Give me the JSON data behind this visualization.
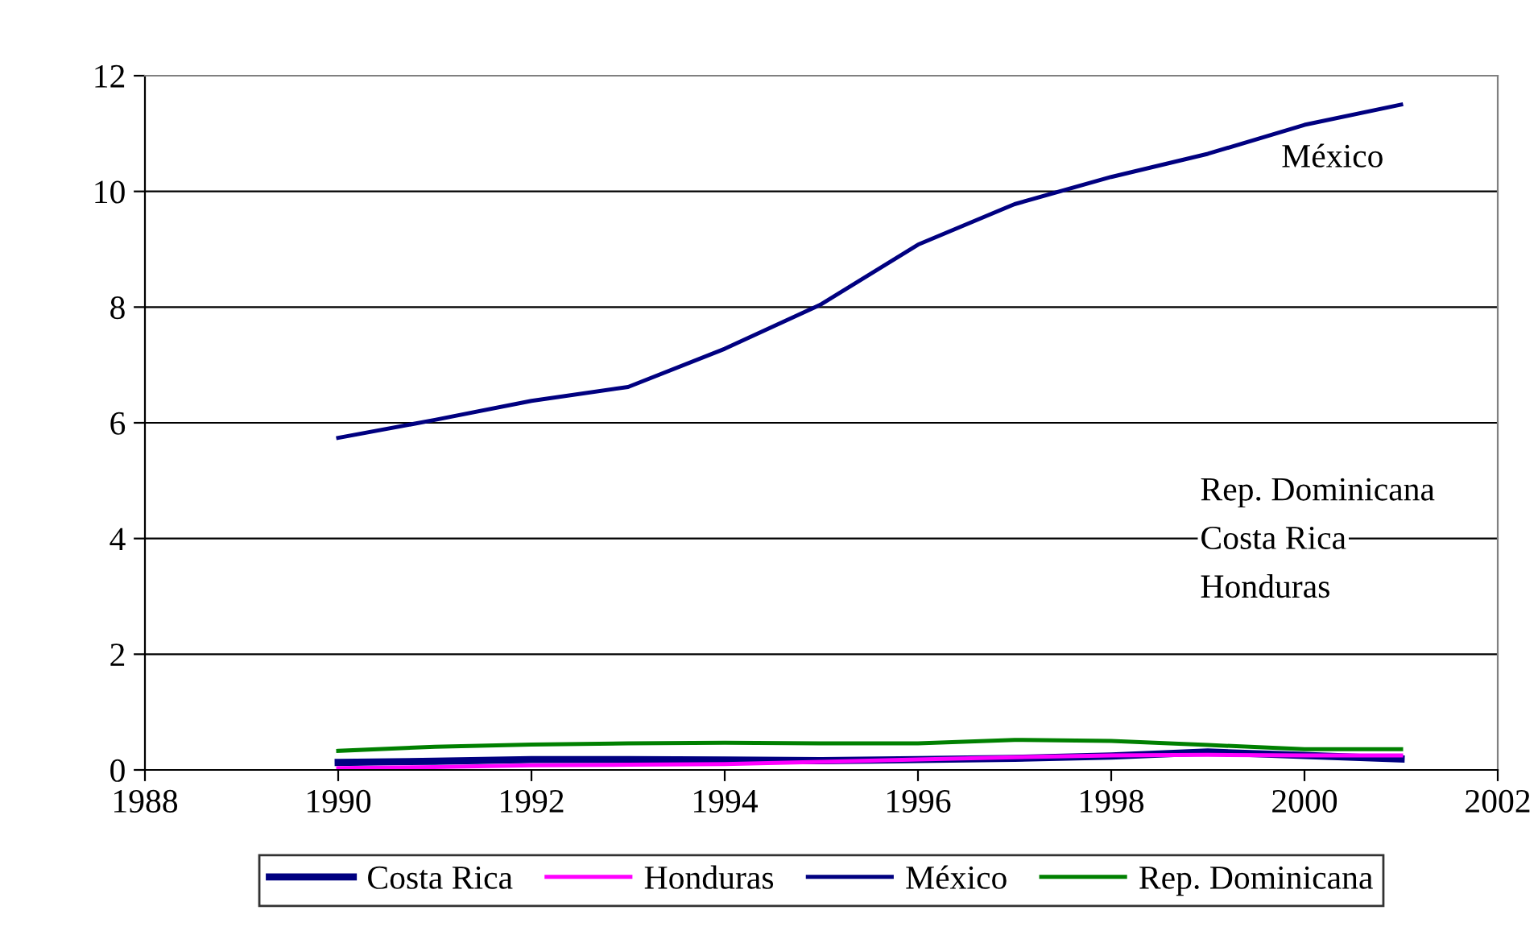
{
  "chart_data": {
    "type": "line",
    "x": [
      1990,
      1991,
      1992,
      1993,
      1994,
      1995,
      1996,
      1997,
      1998,
      1999,
      2000,
      2001
    ],
    "series": [
      {
        "name": "Costa Rica",
        "color": "#000080",
        "values": [
          0.13,
          0.15,
          0.18,
          0.18,
          0.17,
          0.16,
          0.18,
          0.2,
          0.24,
          0.31,
          0.25,
          0.19
        ]
      },
      {
        "name": "Honduras",
        "color": "#ff00ff",
        "values": [
          0.03,
          0.05,
          0.08,
          0.09,
          0.1,
          0.14,
          0.18,
          0.22,
          0.25,
          0.26,
          0.25,
          0.25
        ]
      },
      {
        "name": "México",
        "color": "#000080",
        "values": [
          5.74,
          6.05,
          6.38,
          6.62,
          7.28,
          8.05,
          9.08,
          9.78,
          10.25,
          10.65,
          11.15,
          11.5
        ]
      },
      {
        "name": "Rep. Dominicana",
        "color": "#008000",
        "values": [
          0.33,
          0.4,
          0.44,
          0.46,
          0.47,
          0.46,
          0.46,
          0.52,
          0.5,
          0.43,
          0.36,
          0.36
        ]
      }
    ],
    "xlim": [
      1988,
      2002
    ],
    "xticks": [
      1988,
      1990,
      1992,
      1994,
      1996,
      1998,
      2000,
      2002
    ],
    "ylim": [
      0,
      12
    ],
    "yticks": [
      0,
      2,
      4,
      6,
      8,
      10,
      12
    ],
    "grid": "y",
    "legend": "bottom",
    "marker": "none",
    "line_style": "solid",
    "annotations": [
      "México",
      "Rep. Dominicana",
      "Costa Rica",
      "Honduras"
    ]
  }
}
